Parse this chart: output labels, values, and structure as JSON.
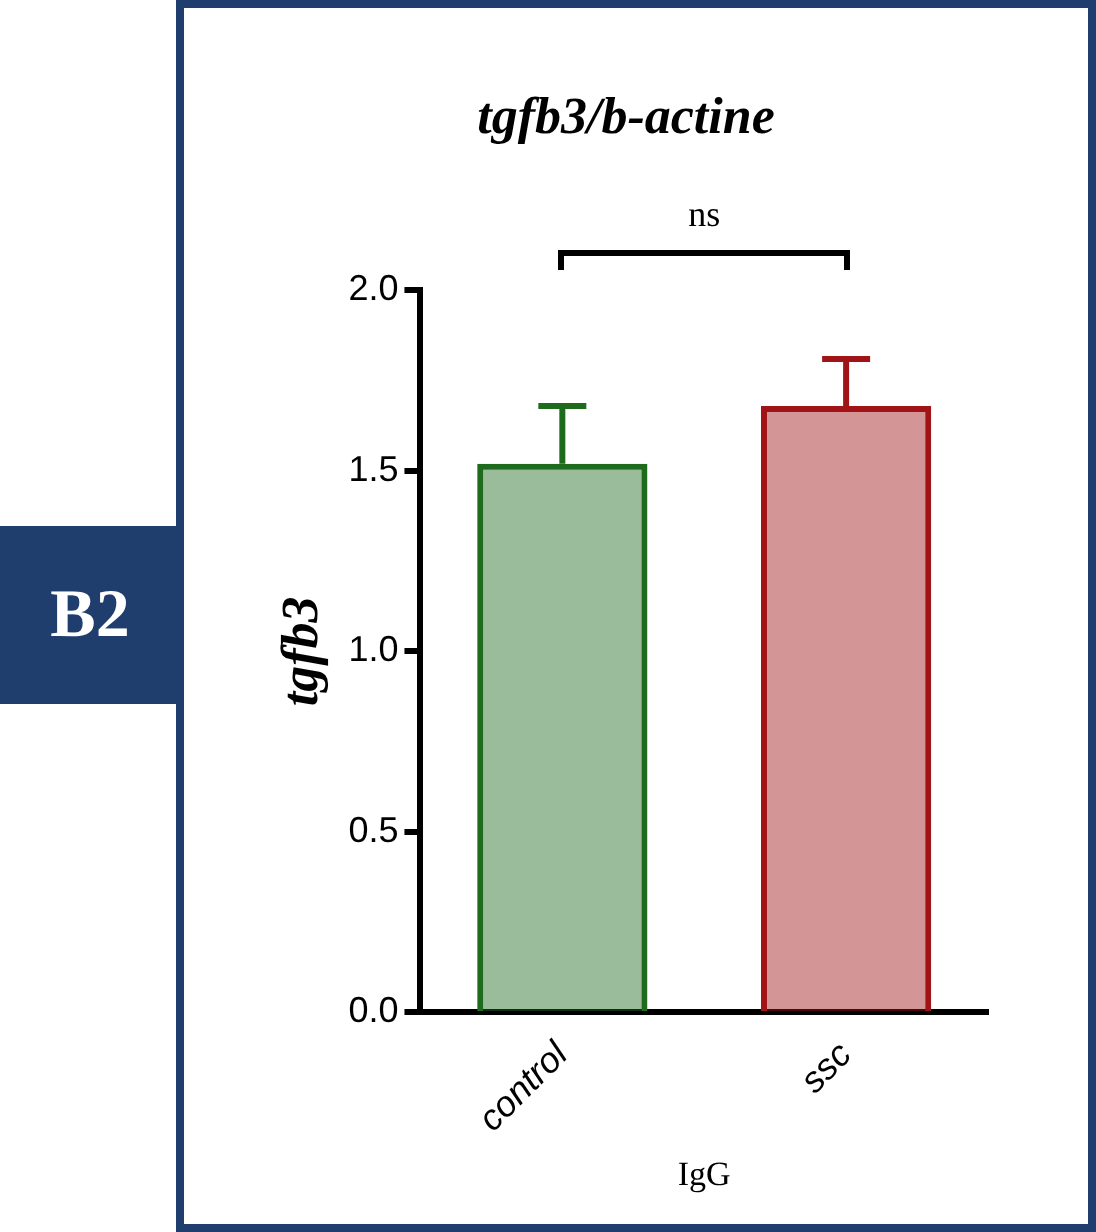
{
  "chart_data": {
    "type": "bar",
    "title": "tgfb3/b-actine",
    "xlabel": "IgG",
    "ylabel": "tgfb3",
    "categories": [
      "control",
      "ssc"
    ],
    "values": [
      1.52,
      1.68
    ],
    "errors": [
      [
        1.52,
        1.68
      ],
      [
        1.68,
        1.81
      ]
    ],
    "colors": [
      "#1e6b1e",
      "#a01418"
    ],
    "ylim": [
      0,
      2
    ],
    "yticks": [
      {
        "value": 0,
        "label": "0.0"
      },
      {
        "value": 0.5,
        "label": "0.5"
      },
      {
        "value": 1,
        "label": "1.0"
      },
      {
        "value": 1.5,
        "label": "1.5"
      },
      {
        "value": 2,
        "label": "2.0"
      }
    ],
    "grid": false,
    "legend": false,
    "annotations": [
      "ns",
      "B2"
    ]
  }
}
